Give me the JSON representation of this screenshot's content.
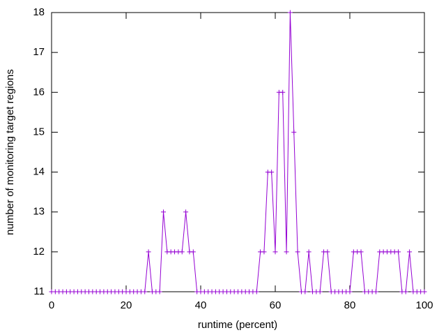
{
  "chart_data": {
    "type": "line",
    "x_label": "runtime (percent)",
    "y_label": "number of monitoring target regions",
    "x": [
      0,
      1,
      2,
      3,
      4,
      5,
      6,
      7,
      8,
      9,
      10,
      11,
      12,
      13,
      14,
      15,
      16,
      17,
      18,
      19,
      20,
      21,
      22,
      23,
      24,
      25,
      26,
      27,
      28,
      29,
      30,
      31,
      32,
      33,
      34,
      35,
      36,
      37,
      38,
      39,
      40,
      41,
      42,
      43,
      44,
      45,
      46,
      47,
      48,
      49,
      50,
      51,
      52,
      53,
      54,
      55,
      56,
      57,
      58,
      59,
      60,
      61,
      62,
      63,
      64,
      65,
      66,
      67,
      68,
      69,
      70,
      71,
      72,
      73,
      74,
      75,
      76,
      77,
      78,
      79,
      80,
      81,
      82,
      83,
      84,
      85,
      86,
      87,
      88,
      89,
      90,
      91,
      92,
      93,
      94,
      95,
      96,
      97,
      98,
      99,
      100
    ],
    "series": [
      {
        "color": "#9400d3",
        "values": [
          11,
          11,
          11,
          11,
          11,
          11,
          11,
          11,
          11,
          11,
          11,
          11,
          11,
          11,
          11,
          11,
          11,
          11,
          11,
          11,
          11,
          11,
          11,
          11,
          11,
          11,
          12,
          11,
          11,
          11,
          13,
          12,
          12,
          12,
          12,
          12,
          13,
          12,
          12,
          11,
          11,
          11,
          11,
          11,
          11,
          11,
          11,
          11,
          11,
          11,
          11,
          11,
          11,
          11,
          11,
          11,
          12,
          12,
          14,
          14,
          12,
          16,
          16,
          12,
          18,
          15,
          12,
          11,
          11,
          12,
          11,
          11,
          11,
          12,
          12,
          11,
          11,
          11,
          11,
          11,
          11,
          12,
          12,
          12,
          11,
          11,
          11,
          11,
          12,
          12,
          12,
          12,
          12,
          12,
          11,
          11,
          12,
          11,
          11,
          11,
          11
        ]
      }
    ],
    "xlim": [
      0,
      100
    ],
    "xticks": [
      0,
      20,
      40,
      60,
      80,
      100
    ],
    "ylim": [
      11,
      18
    ],
    "yticks": [
      11,
      12,
      13,
      14,
      15,
      16,
      17,
      18
    ]
  }
}
